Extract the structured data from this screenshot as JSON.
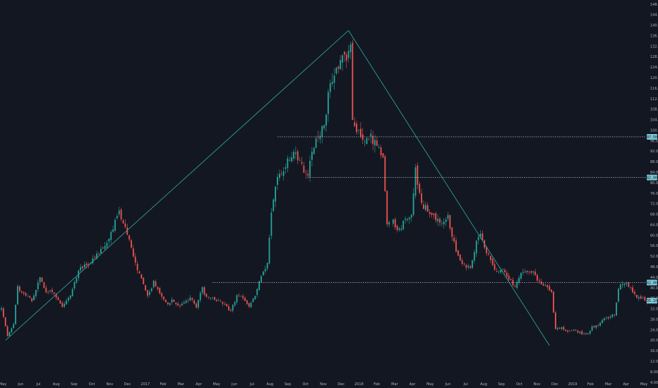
{
  "chart_data": {
    "type": "candlestick",
    "title": "",
    "xlabel": "",
    "ylabel": "",
    "ylim": [
      4.0,
      150.0
    ],
    "grid": false,
    "colors": {
      "background": "#131722",
      "up": "#26a69a",
      "down": "#ef5350",
      "trendline": "#2aa198",
      "level_line": "#c8d3e0",
      "axis_text": "#b2b5be",
      "badge": "#7ec8d6"
    },
    "y_ticks": [
      "4.00",
      "8.00",
      "12.00",
      "16.00",
      "20.00",
      "24.00",
      "28.00",
      "32.00",
      "36.00",
      "40.00",
      "44.00",
      "48.00",
      "52.00",
      "56.00",
      "60.00",
      "64.00",
      "68.00",
      "72.00",
      "76.00",
      "80.00",
      "84.00",
      "88.00",
      "92.00",
      "96.00",
      "100.00",
      "104.00",
      "108.00",
      "112.00",
      "116.00",
      "120.00",
      "124.00",
      "128.00",
      "132.00",
      "136.00",
      "140.00",
      "144.00",
      "148.00"
    ],
    "x_ticks": [
      "May",
      "Jun",
      "Jul",
      "Aug",
      "Sep",
      "Oct",
      "Nov",
      "Dec",
      "2017",
      "Feb",
      "Mar",
      "Apr",
      "May",
      "Jun",
      "Jul",
      "Aug",
      "Sep",
      "Oct",
      "Nov",
      "Dec",
      "2018",
      "Feb",
      "Mar",
      "Apr",
      "May",
      "Jun",
      "Jul",
      "Aug",
      "Sep",
      "Oct",
      "Nov",
      "Dec",
      "2019",
      "Feb",
      "Mar",
      "Apr",
      "May"
    ],
    "price_anchors": [
      [
        0,
        32
      ],
      [
        3,
        22
      ],
      [
        6,
        26
      ],
      [
        8,
        40
      ],
      [
        11,
        38
      ],
      [
        15,
        35
      ],
      [
        19,
        44
      ],
      [
        22,
        38
      ],
      [
        25,
        39
      ],
      [
        30,
        33
      ],
      [
        34,
        37
      ],
      [
        38,
        47
      ],
      [
        43,
        49
      ],
      [
        48,
        53
      ],
      [
        52,
        57
      ],
      [
        55,
        63
      ],
      [
        58,
        69
      ],
      [
        60,
        64
      ],
      [
        63,
        59
      ],
      [
        66,
        49
      ],
      [
        69,
        43
      ],
      [
        72,
        37
      ],
      [
        75,
        42
      ],
      [
        78,
        38
      ],
      [
        81,
        34
      ],
      [
        84,
        35
      ],
      [
        87,
        33
      ],
      [
        90,
        34
      ],
      [
        93,
        36
      ],
      [
        96,
        33
      ],
      [
        99,
        40
      ],
      [
        101,
        36
      ],
      [
        104,
        36
      ],
      [
        107,
        35
      ],
      [
        110,
        34
      ],
      [
        113,
        31
      ],
      [
        116,
        37
      ],
      [
        119,
        36
      ],
      [
        122,
        33
      ],
      [
        125,
        37
      ],
      [
        128,
        45
      ],
      [
        131,
        49
      ],
      [
        133,
        69
      ],
      [
        136,
        82
      ],
      [
        139,
        85
      ],
      [
        142,
        90
      ],
      [
        145,
        92
      ],
      [
        148,
        86
      ],
      [
        151,
        82
      ],
      [
        153,
        93
      ],
      [
        156,
        98
      ],
      [
        159,
        102
      ],
      [
        161,
        113
      ],
      [
        164,
        122
      ],
      [
        167,
        126
      ],
      [
        170,
        128
      ],
      [
        172,
        131
      ],
      [
        173,
        104
      ],
      [
        175,
        101
      ],
      [
        177,
        99
      ],
      [
        179,
        96
      ],
      [
        181,
        98
      ],
      [
        184,
        95
      ],
      [
        186,
        93
      ],
      [
        188,
        90
      ],
      [
        190,
        64
      ],
      [
        193,
        65
      ],
      [
        196,
        62
      ],
      [
        199,
        66
      ],
      [
        202,
        68
      ],
      [
        204,
        85
      ],
      [
        206,
        76
      ],
      [
        208,
        71
      ],
      [
        211,
        69
      ],
      [
        214,
        66
      ],
      [
        217,
        64
      ],
      [
        220,
        67
      ],
      [
        222,
        60
      ],
      [
        225,
        52
      ],
      [
        228,
        49
      ],
      [
        231,
        47
      ],
      [
        234,
        57
      ],
      [
        236,
        60
      ],
      [
        238,
        55
      ],
      [
        241,
        51
      ],
      [
        244,
        46
      ],
      [
        247,
        47
      ],
      [
        250,
        43
      ],
      [
        253,
        41
      ],
      [
        256,
        45
      ],
      [
        259,
        47
      ],
      [
        262,
        46
      ],
      [
        265,
        42
      ],
      [
        268,
        41
      ],
      [
        271,
        38
      ],
      [
        273,
        24
      ],
      [
        276,
        25
      ],
      [
        279,
        23
      ],
      [
        282,
        24
      ],
      [
        285,
        23
      ],
      [
        288,
        22
      ],
      [
        291,
        25
      ],
      [
        294,
        26
      ],
      [
        297,
        28
      ],
      [
        300,
        29
      ],
      [
        302,
        30
      ],
      [
        304,
        40
      ],
      [
        307,
        42
      ],
      [
        310,
        40
      ],
      [
        312,
        37
      ],
      [
        315,
        36
      ],
      [
        318,
        35
      ]
    ],
    "gaps": [
      [
        191,
        193
      ]
    ],
    "trendlines": [
      {
        "from": [
          2,
          20
        ],
        "to": [
          171,
          138
        ]
      },
      {
        "from": [
          171,
          138
        ],
        "to": [
          270,
          18
        ]
      }
    ],
    "levels": [
      {
        "value": 97.5,
        "from": 136,
        "label": "97.50"
      },
      {
        "value": 82.0,
        "from": 151,
        "label": "82.00"
      },
      {
        "value": 42.0,
        "from": 104,
        "label": "42.00"
      }
    ],
    "last_price_label": "35.10",
    "last_price": 35.1
  }
}
